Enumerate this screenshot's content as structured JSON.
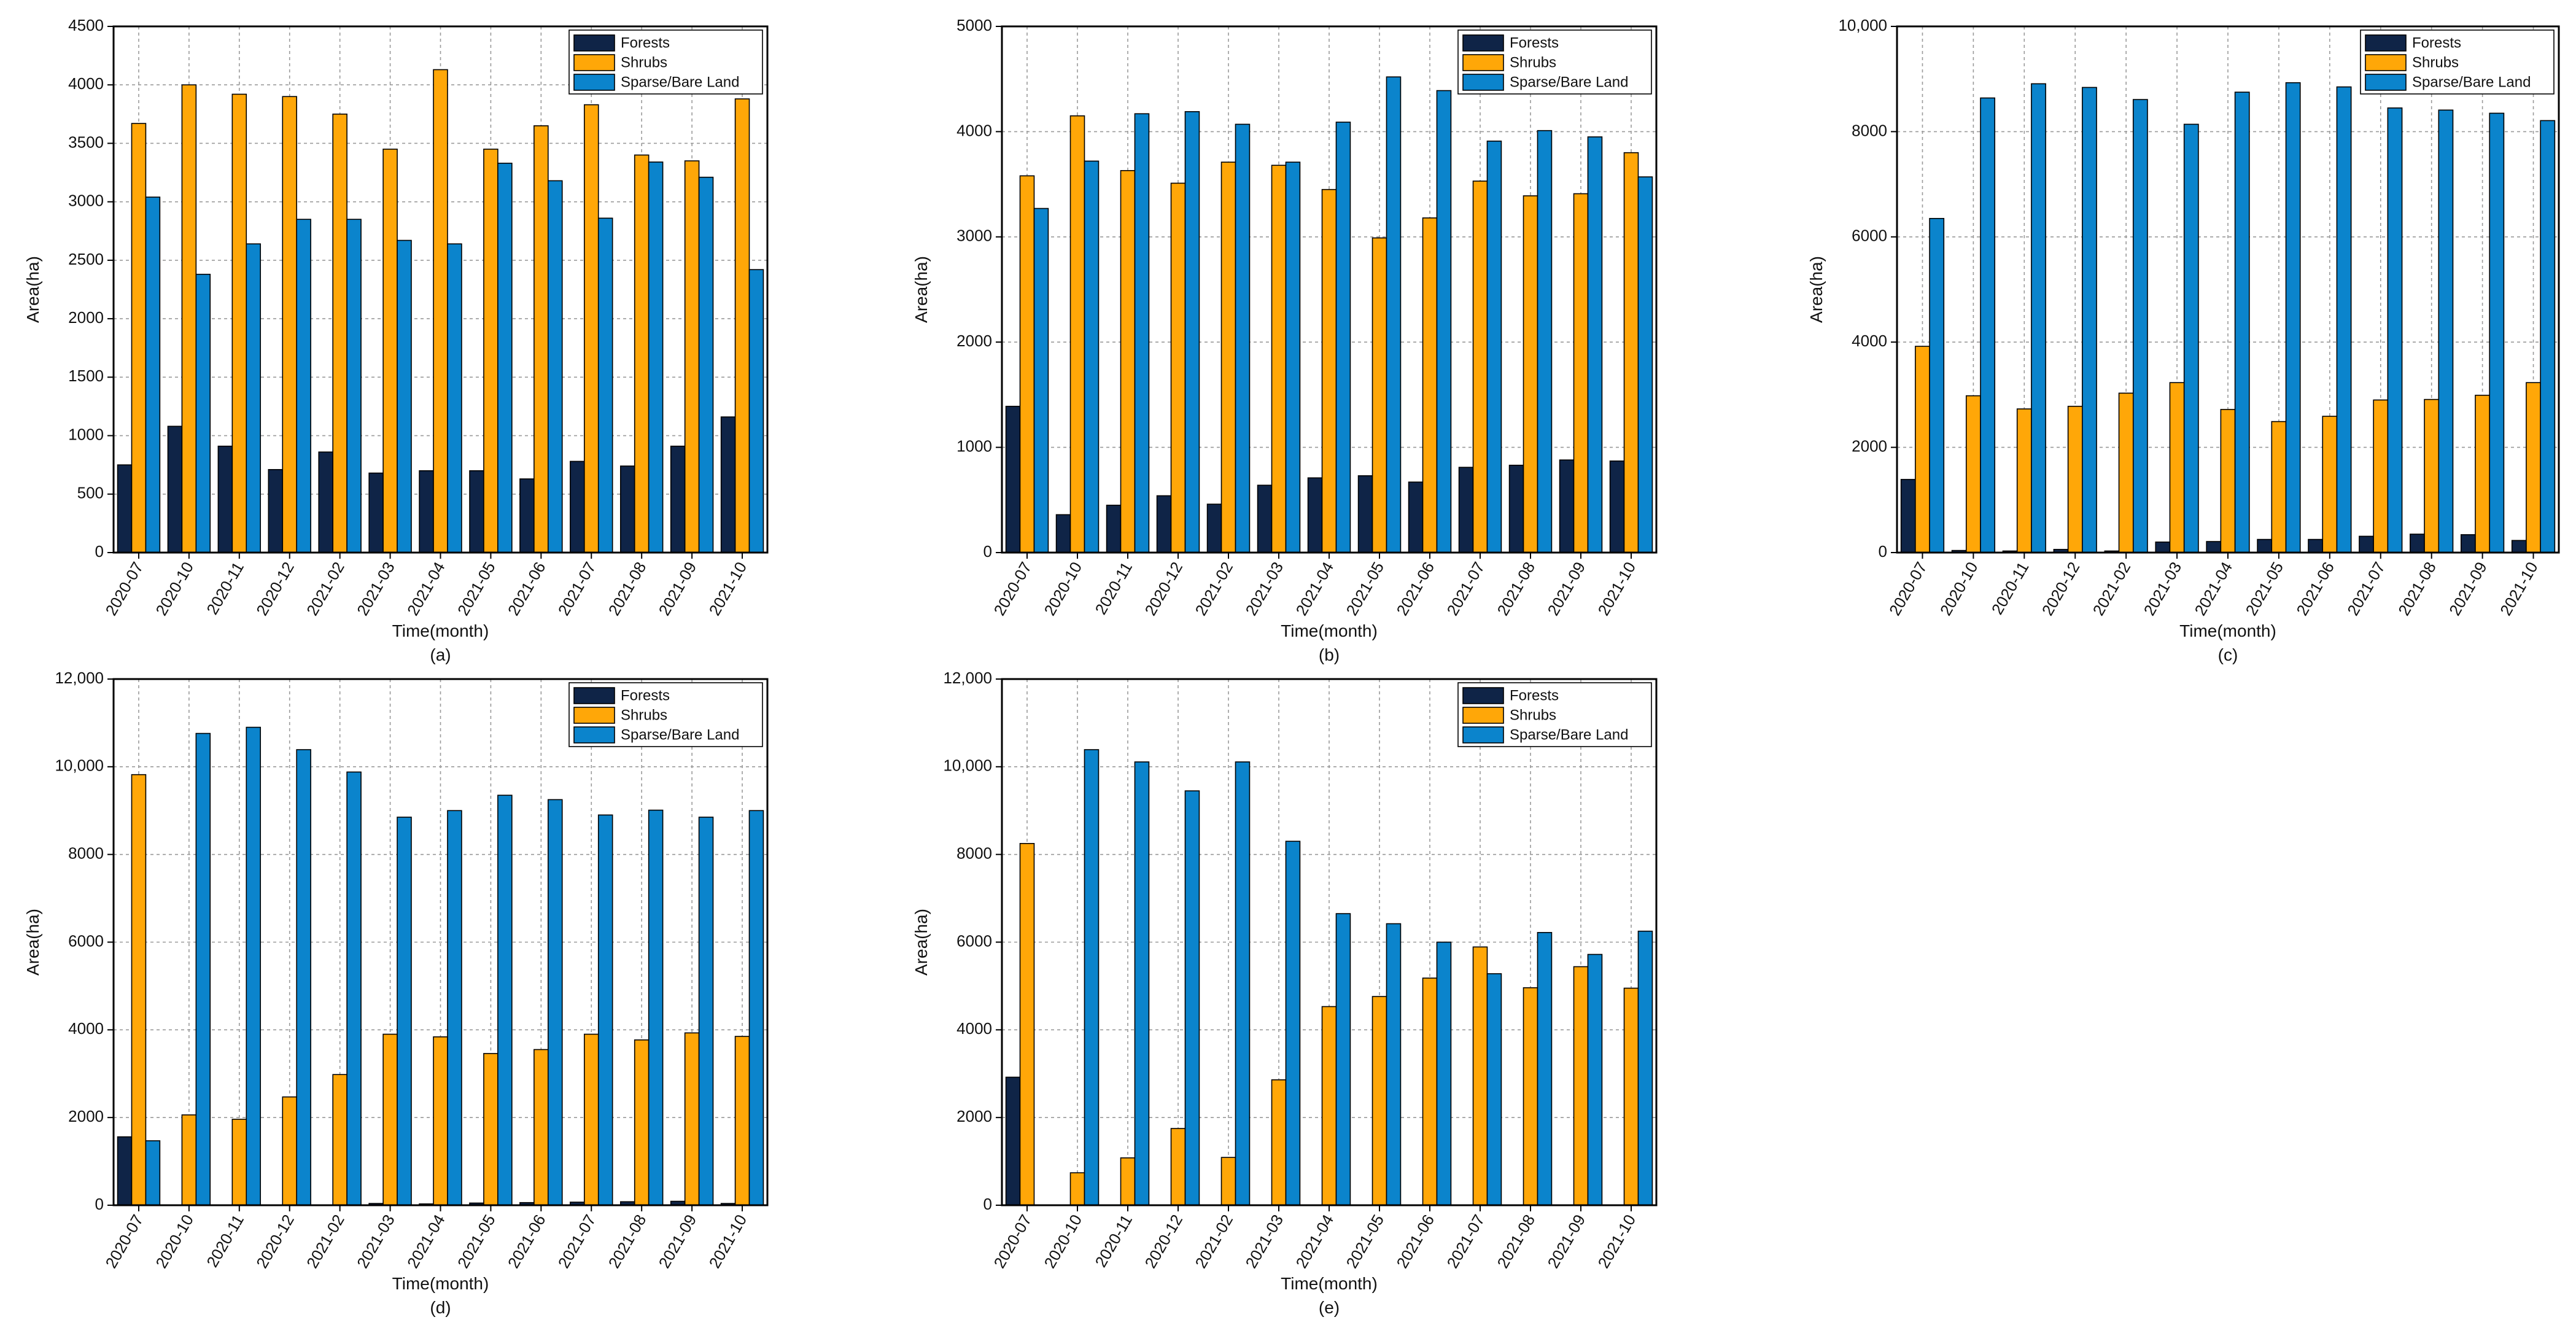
{
  "colors": {
    "forests": "#0f2447",
    "shrubs": "#ffa708",
    "sparse": "#0b84cc"
  },
  "legend": [
    "Forests",
    "Shrubs",
    "Sparse/Bare Land"
  ],
  "chart_data": [
    {
      "type": "bar",
      "panel": "(a)",
      "xlabel": "Time(month)",
      "ylabel": "Area(ha)",
      "ylim": [
        0,
        4500
      ],
      "yticks": [
        0,
        500,
        1000,
        1500,
        2000,
        2500,
        3000,
        3500,
        4000,
        4500
      ],
      "ytick_labels": [
        "0",
        "500",
        "1000",
        "1500",
        "2000",
        "2500",
        "3000",
        "3500",
        "4000",
        "4500"
      ],
      "categories": [
        "2020-07",
        "2020-10",
        "2020-11",
        "2020-12",
        "2021-02",
        "2021-03",
        "2021-04",
        "2021-05",
        "2021-06",
        "2021-07",
        "2021-08",
        "2021-09",
        "2021-10"
      ],
      "series": [
        {
          "name": "Forests",
          "values": [
            750,
            1080,
            910,
            710,
            860,
            680,
            700,
            700,
            630,
            780,
            740,
            910,
            1160
          ]
        },
        {
          "name": "Shrubs",
          "values": [
            3670,
            4000,
            3920,
            3900,
            3750,
            3450,
            4130,
            3450,
            3650,
            3830,
            3400,
            3350,
            3880
          ]
        },
        {
          "name": "Sparse/Bare Land",
          "values": [
            3040,
            2380,
            2640,
            2850,
            2850,
            2670,
            2640,
            3330,
            3180,
            2860,
            3340,
            3210,
            2420
          ]
        }
      ],
      "grid": true,
      "legend_position": "top-right"
    },
    {
      "type": "bar",
      "panel": "(b)",
      "xlabel": "Time(month)",
      "ylabel": "Area(ha)",
      "ylim": [
        0,
        5000
      ],
      "yticks": [
        0,
        1000,
        2000,
        3000,
        4000,
        5000
      ],
      "ytick_labels": [
        "0",
        "1000",
        "2000",
        "3000",
        "4000",
        "5000"
      ],
      "categories": [
        "2020-07",
        "2020-10",
        "2020-11",
        "2020-12",
        "2021-02",
        "2021-03",
        "2021-04",
        "2021-05",
        "2021-06",
        "2021-07",
        "2021-08",
        "2021-09",
        "2021-10"
      ],
      "series": [
        {
          "name": "Forests",
          "values": [
            1390,
            360,
            450,
            540,
            460,
            640,
            710,
            730,
            670,
            810,
            830,
            880,
            870
          ]
        },
        {
          "name": "Shrubs",
          "values": [
            3580,
            4150,
            3630,
            3510,
            3710,
            3680,
            3450,
            2990,
            3180,
            3530,
            3390,
            3410,
            3800
          ]
        },
        {
          "name": "Sparse/Bare Land",
          "values": [
            3270,
            3720,
            4170,
            4190,
            4070,
            3710,
            4090,
            4520,
            4390,
            3910,
            4010,
            3950,
            3570
          ]
        }
      ],
      "grid": true,
      "legend_position": "top-right"
    },
    {
      "type": "bar",
      "panel": "(c)",
      "xlabel": "Time(month)",
      "ylabel": "Area(ha)",
      "ylim": [
        0,
        10000
      ],
      "yticks": [
        0,
        2000,
        4000,
        6000,
        8000,
        10000
      ],
      "ytick_labels": [
        "0",
        "2000",
        "4000",
        "6000",
        "8000",
        "10,000"
      ],
      "categories": [
        "2020-07",
        "2020-10",
        "2020-11",
        "2020-12",
        "2021-02",
        "2021-03",
        "2021-04",
        "2021-05",
        "2021-06",
        "2021-07",
        "2021-08",
        "2021-09",
        "2021-10"
      ],
      "series": [
        {
          "name": "Forests",
          "values": [
            1390,
            40,
            30,
            60,
            30,
            200,
            210,
            250,
            250,
            310,
            350,
            340,
            230
          ]
        },
        {
          "name": "Shrubs",
          "values": [
            3920,
            2980,
            2730,
            2780,
            3030,
            3230,
            2720,
            2490,
            2590,
            2900,
            2910,
            2990,
            3230
          ]
        },
        {
          "name": "Sparse/Bare Land",
          "values": [
            6350,
            8640,
            8910,
            8840,
            8610,
            8140,
            8750,
            8930,
            8850,
            8450,
            8410,
            8350,
            8210
          ]
        }
      ],
      "grid": true,
      "legend_position": "top-right"
    },
    {
      "type": "bar",
      "panel": "(d)",
      "xlabel": "Time(month)",
      "ylabel": "Area(ha)",
      "ylim": [
        0,
        12000
      ],
      "yticks": [
        0,
        2000,
        4000,
        6000,
        8000,
        10000,
        12000
      ],
      "ytick_labels": [
        "0",
        "2000",
        "4000",
        "6000",
        "8000",
        "10,000",
        "12,000"
      ],
      "categories": [
        "2020-07",
        "2020-10",
        "2020-11",
        "2020-12",
        "2021-02",
        "2021-03",
        "2021-04",
        "2021-05",
        "2021-06",
        "2021-07",
        "2021-08",
        "2021-09",
        "2021-10"
      ],
      "series": [
        {
          "name": "Forests",
          "values": [
            1560,
            0,
            0,
            0,
            0,
            40,
            30,
            50,
            60,
            70,
            80,
            90,
            40
          ]
        },
        {
          "name": "Shrubs",
          "values": [
            9820,
            2060,
            1960,
            2470,
            2980,
            3900,
            3840,
            3460,
            3550,
            3900,
            3770,
            3930,
            3850
          ]
        },
        {
          "name": "Sparse/Bare Land",
          "values": [
            1470,
            10760,
            10900,
            10390,
            9880,
            8850,
            9000,
            9350,
            9250,
            8900,
            9010,
            8850,
            9000
          ]
        }
      ],
      "grid": true,
      "legend_position": "top-right"
    },
    {
      "type": "bar",
      "panel": "(e)",
      "xlabel": "Time(month)",
      "ylabel": "Area(ha)",
      "ylim": [
        0,
        12000
      ],
      "yticks": [
        0,
        2000,
        4000,
        6000,
        8000,
        10000,
        12000
      ],
      "ytick_labels": [
        "0",
        "2000",
        "4000",
        "6000",
        "8000",
        "10,000",
        "12,000"
      ],
      "categories": [
        "2020-07",
        "2020-10",
        "2020-11",
        "2020-12",
        "2021-02",
        "2021-03",
        "2021-04",
        "2021-05",
        "2021-06",
        "2021-07",
        "2021-08",
        "2021-09",
        "2021-10"
      ],
      "series": [
        {
          "name": "Forests",
          "values": [
            2920,
            0,
            0,
            0,
            0,
            0,
            0,
            0,
            0,
            0,
            0,
            0,
            0
          ]
        },
        {
          "name": "Shrubs",
          "values": [
            8250,
            740,
            1080,
            1750,
            1090,
            2860,
            4530,
            4760,
            5180,
            5890,
            4960,
            5440,
            4950
          ]
        },
        {
          "name": "Sparse/Bare Land",
          "values": [
            0,
            10390,
            10110,
            9450,
            10110,
            8300,
            6650,
            6420,
            6000,
            5280,
            6220,
            5720,
            6250
          ]
        }
      ],
      "grid": true,
      "legend_position": "top-right"
    }
  ]
}
